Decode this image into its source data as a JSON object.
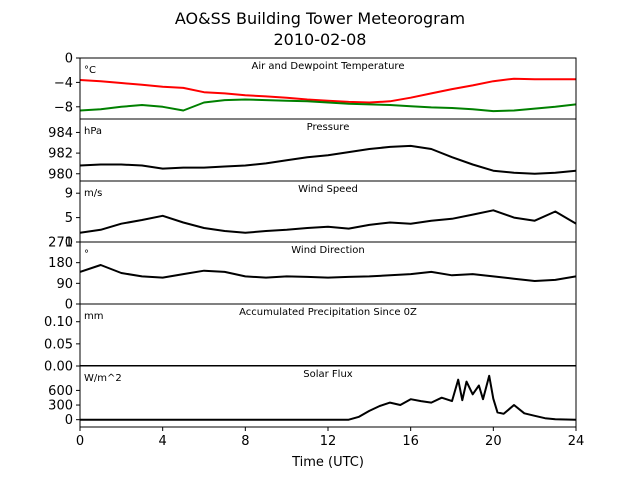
{
  "chart_data": {
    "type": "line",
    "title": "AO&SS Building Tower Meteorogram",
    "subtitle": "2010-02-08",
    "xlabel": "Time (UTC)",
    "xlim": [
      0,
      24
    ],
    "xticks": [
      0,
      4,
      8,
      12,
      16,
      20,
      24
    ],
    "panels": [
      {
        "title": "Air and Dewpoint Temperature",
        "unit": "°C",
        "ylim": [
          -10,
          0
        ],
        "yticks": [
          0,
          -4,
          -8
        ],
        "ytick_labels": [
          "0",
          "−4",
          "−8"
        ],
        "series": [
          {
            "color": "#ff0000",
            "x": [
              0,
              1,
              2,
              3,
              4,
              5,
              6,
              7,
              8,
              9,
              10,
              11,
              12,
              13,
              14,
              15,
              16,
              17,
              18,
              19,
              20,
              21,
              22,
              23,
              24
            ],
            "values": [
              -3.6,
              -3.8,
              -4.1,
              -4.4,
              -4.7,
              -4.9,
              -5.6,
              -5.8,
              -6.1,
              -6.3,
              -6.5,
              -6.8,
              -7.0,
              -7.2,
              -7.3,
              -7.1,
              -6.5,
              -5.8,
              -5.1,
              -4.5,
              -3.8,
              -3.4,
              -3.5,
              -3.5,
              -3.5
            ]
          },
          {
            "color": "#008000",
            "x": [
              0,
              1,
              2,
              3,
              4,
              5,
              6,
              7,
              8,
              9,
              10,
              11,
              12,
              13,
              14,
              15,
              16,
              17,
              18,
              19,
              20,
              21,
              22,
              23,
              24
            ],
            "values": [
              -8.6,
              -8.4,
              -8.0,
              -7.7,
              -8.0,
              -8.6,
              -7.3,
              -6.9,
              -6.8,
              -6.9,
              -7.0,
              -7.1,
              -7.3,
              -7.5,
              -7.6,
              -7.7,
              -7.9,
              -8.1,
              -8.2,
              -8.4,
              -8.7,
              -8.6,
              -8.3,
              -8.0,
              -7.6
            ]
          }
        ]
      },
      {
        "title": "Pressure",
        "unit": "hPa",
        "ylim": [
          979.3,
          985.3
        ],
        "yticks": [
          980,
          982,
          984
        ],
        "ytick_labels": [
          "980",
          "982",
          "984"
        ],
        "series": [
          {
            "color": "#000000",
            "x": [
              0,
              1,
              2,
              3,
              4,
              5,
              6,
              7,
              8,
              9,
              10,
              11,
              12,
              13,
              14,
              15,
              16,
              17,
              18,
              19,
              20,
              21,
              22,
              23,
              24
            ],
            "values": [
              980.8,
              980.9,
              980.9,
              980.8,
              980.5,
              980.6,
              980.6,
              980.7,
              980.8,
              981.0,
              981.3,
              981.6,
              981.8,
              982.1,
              982.4,
              982.6,
              982.7,
              982.4,
              981.6,
              980.9,
              980.3,
              980.1,
              980.0,
              980.1,
              980.3
            ]
          }
        ]
      },
      {
        "title": "Wind Speed",
        "unit": "m/s",
        "ylim": [
          1,
          11
        ],
        "yticks": [
          1,
          5,
          9
        ],
        "ytick_labels": [
          "1",
          "5",
          "9"
        ],
        "series": [
          {
            "color": "#000000",
            "x": [
              0,
              1,
              2,
              3,
              4,
              5,
              6,
              7,
              8,
              9,
              10,
              11,
              12,
              13,
              14,
              15,
              16,
              17,
              18,
              19,
              20,
              21,
              22,
              23,
              24
            ],
            "values": [
              2.5,
              3.0,
              4.0,
              4.6,
              5.3,
              4.2,
              3.3,
              2.8,
              2.5,
              2.8,
              3.0,
              3.3,
              3.5,
              3.2,
              3.8,
              4.2,
              4.0,
              4.5,
              4.8,
              5.5,
              6.2,
              5.0,
              4.5,
              6.0,
              4.0
            ]
          }
        ]
      },
      {
        "title": "Wind Direction",
        "unit": "°",
        "ylim": [
          0,
          270
        ],
        "yticks": [
          0,
          90,
          180,
          270
        ],
        "ytick_labels": [
          "0",
          "90",
          "180",
          "270"
        ],
        "series": [
          {
            "color": "#000000",
            "x": [
              0,
              1,
              2,
              3,
              4,
              5,
              6,
              7,
              8,
              9,
              10,
              11,
              12,
              13,
              14,
              15,
              16,
              17,
              18,
              19,
              20,
              21,
              22,
              23,
              24
            ],
            "values": [
              140,
              170,
              135,
              120,
              115,
              130,
              145,
              140,
              120,
              115,
              120,
              118,
              115,
              118,
              120,
              125,
              130,
              140,
              125,
              130,
              120,
              110,
              100,
              105,
              120
            ]
          }
        ]
      },
      {
        "title": "Accumulated Precipitation Since 0Z",
        "unit": "mm",
        "ylim": [
          0,
          0.14
        ],
        "yticks": [
          0.0,
          0.05,
          0.1
        ],
        "ytick_labels": [
          "0.00",
          "0.05",
          "0.10"
        ],
        "series": [
          {
            "color": "#000000",
            "x": [
              0,
              24
            ],
            "values": [
              0,
              0
            ]
          }
        ]
      },
      {
        "title": "Solar Flux",
        "unit": "W/m^2",
        "ylim": [
          -150,
          1100
        ],
        "yticks": [
          0,
          300,
          600
        ],
        "ytick_labels": [
          "0",
          "300",
          "600"
        ],
        "series": [
          {
            "color": "#000000",
            "x": [
              0,
              13,
              13.5,
              14,
              14.5,
              15,
              15.5,
              16,
              16.5,
              17,
              17.5,
              18,
              18.3,
              18.5,
              18.7,
              19,
              19.3,
              19.5,
              19.8,
              20,
              20.2,
              20.5,
              21,
              21.5,
              22,
              22.5,
              23,
              24
            ],
            "values": [
              0,
              0,
              60,
              180,
              280,
              350,
              300,
              420,
              380,
              350,
              450,
              380,
              820,
              400,
              780,
              520,
              700,
              420,
              900,
              430,
              150,
              120,
              300,
              130,
              80,
              30,
              10,
              0
            ]
          }
        ]
      }
    ]
  }
}
